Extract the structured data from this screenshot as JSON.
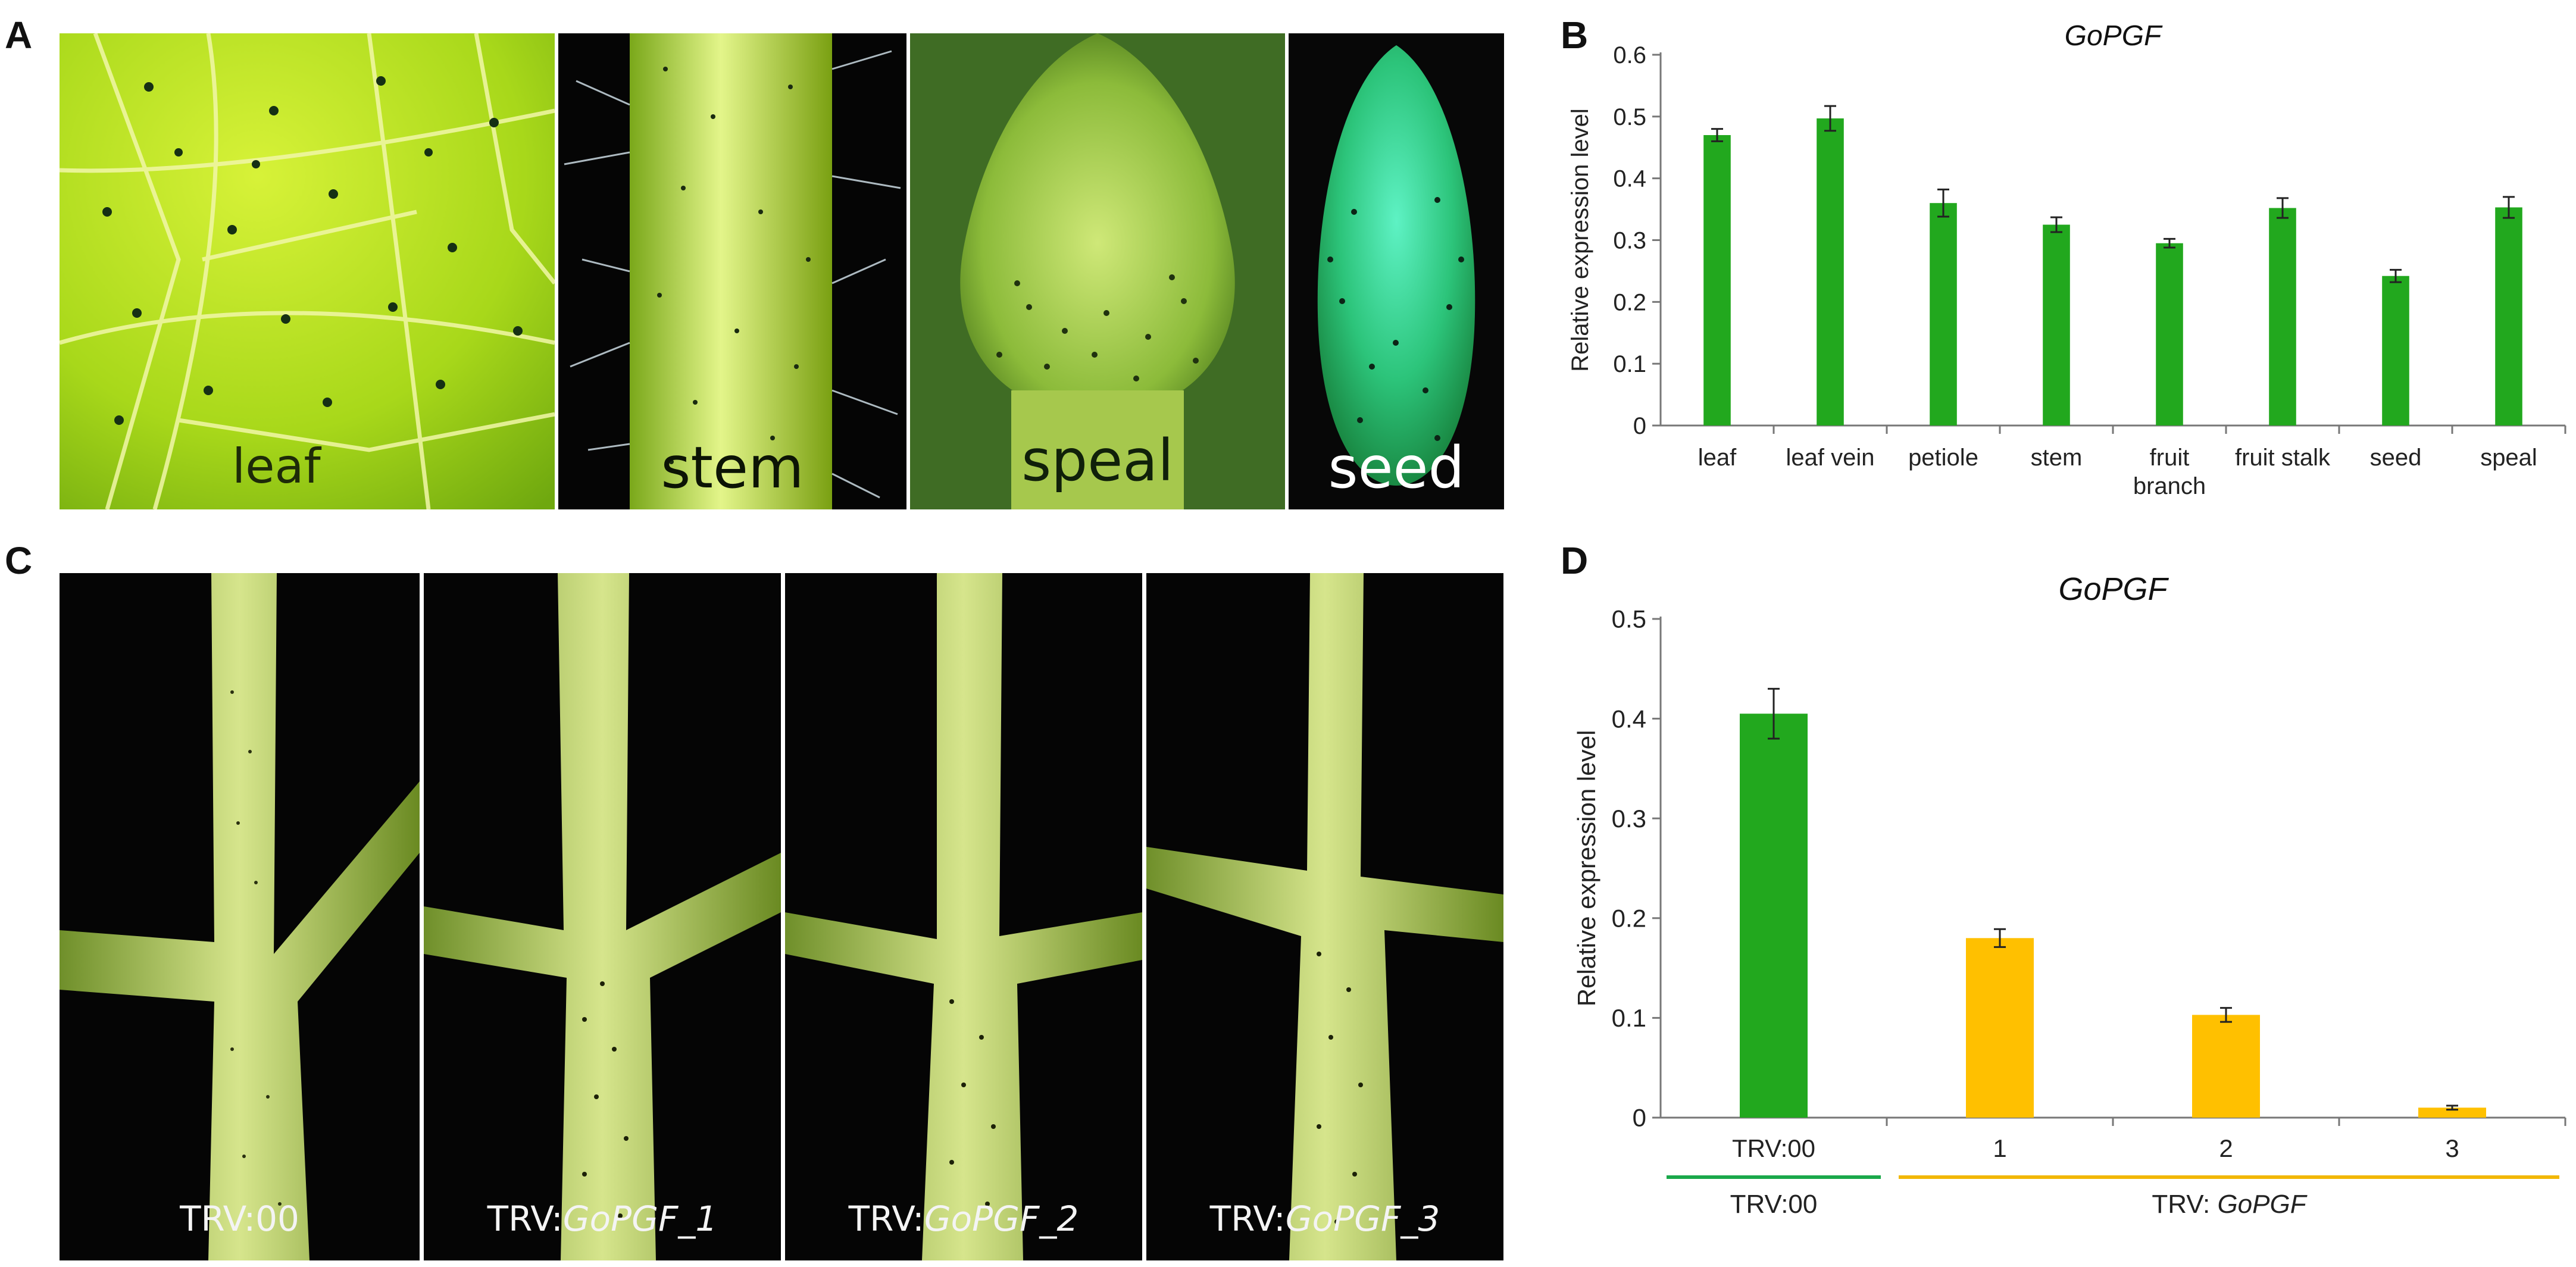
{
  "panels": {
    "a": {
      "letter": "A",
      "photos": [
        {
          "caption": "leaf"
        },
        {
          "caption": "stem"
        },
        {
          "caption": "speal"
        },
        {
          "caption": "seed"
        }
      ]
    },
    "b": {
      "letter": "B"
    },
    "c": {
      "letter": "C",
      "photos": [
        {
          "caption_prefix": "TRV:",
          "caption_italic": "00",
          "italic": false
        },
        {
          "caption_prefix": "TRV:",
          "caption_italic": "GoPGF_1",
          "italic": true
        },
        {
          "caption_prefix": "TRV:",
          "caption_italic": "GoPGF_2",
          "italic": true
        },
        {
          "caption_prefix": "TRV:",
          "caption_italic": "GoPGF_3",
          "italic": true
        }
      ]
    },
    "d": {
      "letter": "D",
      "groups": [
        {
          "label_prefix": "TRV:00",
          "label_italic": "",
          "color": "#1aa84a"
        },
        {
          "label_prefix": "TRV: ",
          "label_italic": "GoPGF",
          "color": "#f2b705"
        }
      ]
    }
  },
  "colors": {
    "bar_green": "#22a81e",
    "bar_orange": "#ffc000",
    "photo_bg": "#050505"
  },
  "chart_data": [
    {
      "type": "bar",
      "title": "GoPGF",
      "ylabel": "Relative expression level",
      "xlabel": "",
      "ylim": [
        0,
        0.6
      ],
      "yticks": [
        "0",
        "0.1",
        "0.2",
        "0.3",
        "0.4",
        "0.5",
        "0.6"
      ],
      "categories": [
        [
          "leaf"
        ],
        [
          "leaf vein"
        ],
        [
          "petiole"
        ],
        [
          "stem"
        ],
        [
          "fruit",
          "branch"
        ],
        [
          "fruit stalk"
        ],
        [
          "seed"
        ],
        [
          "speal"
        ]
      ],
      "values": [
        0.47,
        0.497,
        0.36,
        0.325,
        0.295,
        0.352,
        0.242,
        0.353
      ],
      "errors": [
        0.01,
        0.02,
        0.022,
        0.012,
        0.007,
        0.016,
        0.01,
        0.017
      ],
      "colors": [
        "#22a81e",
        "#22a81e",
        "#22a81e",
        "#22a81e",
        "#22a81e",
        "#22a81e",
        "#22a81e",
        "#22a81e"
      ],
      "grid": false
    },
    {
      "type": "bar",
      "title": "GoPGF",
      "ylabel": "Relative expression level",
      "xlabel": "",
      "ylim": [
        0,
        0.5
      ],
      "yticks": [
        "0",
        "0.1",
        "0.2",
        "0.3",
        "0.4",
        "0.5"
      ],
      "categories": [
        [
          "TRV:00"
        ],
        [
          "1"
        ],
        [
          "2"
        ],
        [
          "3"
        ]
      ],
      "values": [
        0.405,
        0.18,
        0.103,
        0.01
      ],
      "errors": [
        0.025,
        0.009,
        0.007,
        0.002
      ],
      "colors": [
        "#22a81e",
        "#ffc000",
        "#ffc000",
        "#ffc000"
      ],
      "grid": false
    }
  ]
}
